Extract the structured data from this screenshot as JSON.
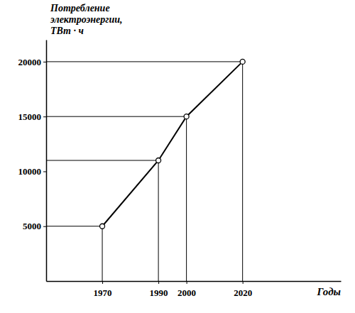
{
  "chart_data": {
    "type": "line",
    "x_label": "Годы",
    "y_label": "Потребление\nэлектроэнергии,\nТВт · ч",
    "x": [
      1970,
      1990,
      2000,
      2020
    ],
    "values": [
      5000,
      11000,
      15000,
      20000
    ],
    "color": "#000000",
    "marker": "circle",
    "xlim": [
      1950,
      2055
    ],
    "xticks": [
      1970,
      1990,
      2000,
      2020
    ],
    "ylim": [
      0,
      22000
    ],
    "yticks": [
      5000,
      10000,
      15000,
      20000
    ],
    "grid": false
  }
}
